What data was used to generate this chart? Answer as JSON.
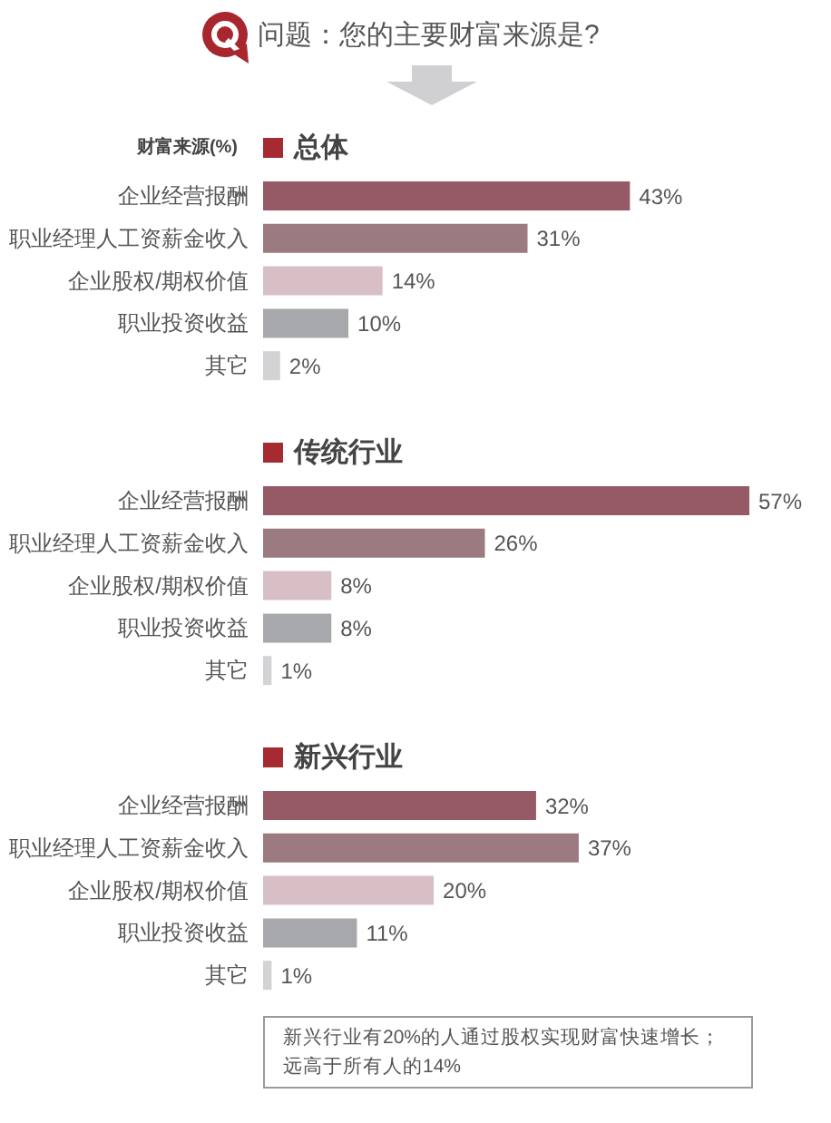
{
  "chart_data": [
    {
      "type": "bar",
      "orientation": "horizontal",
      "title": "问题：您的主要财富来源是?",
      "subtitle": "总体",
      "ylabel": "财富来源(%)",
      "categories": [
        "企业经营报酬",
        "职业经理人工资薪金收入",
        "企业股权/期权价值",
        "职业投资收益",
        "其它"
      ],
      "values": [
        43,
        31,
        14,
        10,
        2
      ],
      "value_labels": [
        "43%",
        "31%",
        "14%",
        "10%",
        "2%"
      ],
      "colors": [
        "#955a66",
        "#9b7a80",
        "#d8bfc5",
        "#a7a8ac",
        "#d3d3d5"
      ],
      "tick_labels": "y"
    },
    {
      "type": "bar",
      "orientation": "horizontal",
      "subtitle": "传统行业",
      "categories": [
        "企业经营报酬",
        "职业经理人工资薪金收入",
        "企业股权/期权价值",
        "职业投资收益",
        "其它"
      ],
      "values": [
        57,
        26,
        8,
        8,
        1
      ],
      "value_labels": [
        "57%",
        "26%",
        "8%",
        "8%",
        "1%"
      ],
      "colors": [
        "#955a66",
        "#9b7a80",
        "#d8bfc5",
        "#a7a8ac",
        "#d3d3d5"
      ],
      "tick_labels": "y"
    },
    {
      "type": "bar",
      "orientation": "horizontal",
      "subtitle": "新兴行业",
      "categories": [
        "企业经营报酬",
        "职业经理人工资薪金收入",
        "企业股权/期权价值",
        "职业投资收益",
        "其它"
      ],
      "values": [
        32,
        37,
        20,
        11,
        1
      ],
      "value_labels": [
        "32%",
        "37%",
        "20%",
        "11%",
        "1%"
      ],
      "colors": [
        "#955a66",
        "#9b7a80",
        "#d8bfc5",
        "#a7a8ac",
        "#d3d3d5"
      ],
      "tick_labels": "y",
      "annotations": [
        "新兴行业有20%的人通过股权实现财富快速增长；远高于所有人的14%"
      ]
    }
  ]
}
